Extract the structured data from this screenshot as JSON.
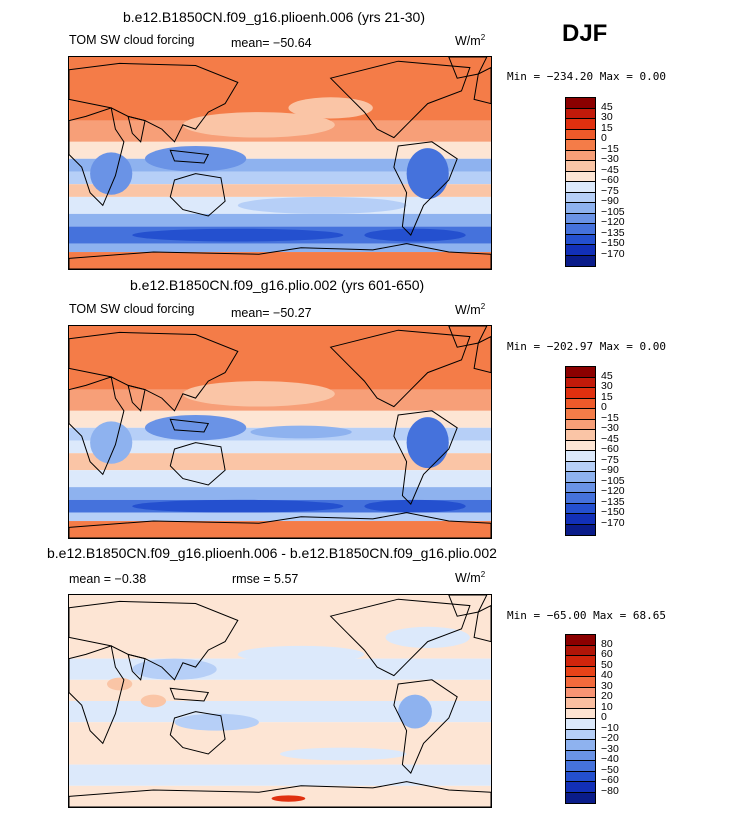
{
  "season": "DJF",
  "panels": [
    {
      "title": "b.e12.B1850CN.f09_g16.plioenh.006 (yrs 21-30)",
      "variable": "TOM SW cloud forcing",
      "mean_text": "mean= −50.64",
      "units_base": "W/m",
      "units_exp": "2",
      "minmax_text": "Min = −234.20 Max =    0.00"
    },
    {
      "title": "b.e12.B1850CN.f09_g16.plio.002 (yrs 601-650)",
      "variable": "TOM SW cloud forcing",
      "mean_text": "mean= −50.27",
      "units_base": "W/m",
      "units_exp": "2",
      "minmax_text": "Min = −202.97 Max =    0.00"
    },
    {
      "title": "b.e12.B1850CN.f09_g16.plioenh.006 - b.e12.B1850CN.f09_g16.plio.002",
      "mean_text": "mean =  −0.38",
      "rmse_text": "rmse =   5.57",
      "units_base": "W/m",
      "units_exp": "2",
      "minmax_text": "Min = −65.00 Max =  68.65"
    }
  ],
  "chart_data": [
    {
      "type": "heatmap",
      "title": "b.e12.B1850CN.f09_g16.plioenh.006 (yrs 21-30)",
      "variable": "TOM SW cloud forcing",
      "units": "W/m2",
      "mean": -50.64,
      "min": -234.2,
      "max": 0.0,
      "colorbar_levels": [
        "45",
        "30",
        "15",
        "0",
        "−15",
        "−30",
        "−45",
        "−60",
        "−75",
        "−90",
        "−105",
        "−120",
        "−135",
        "−150",
        "−170"
      ],
      "colorbar_colors": [
        "#8b0000",
        "#c21a0a",
        "#e0300f",
        "#ee5a2a",
        "#f47c48",
        "#f79f78",
        "#fac5a6",
        "#fde5d4",
        "#dce9fb",
        "#b6cff7",
        "#8eb2ef",
        "#6a93e6",
        "#4572dc",
        "#2450cf",
        "#1230b8",
        "#0a1c8a"
      ]
    },
    {
      "type": "heatmap",
      "title": "b.e12.B1850CN.f09_g16.plio.002 (yrs 601-650)",
      "variable": "TOM SW cloud forcing",
      "units": "W/m2",
      "mean": -50.27,
      "min": -202.97,
      "max": 0.0,
      "colorbar_levels": [
        "45",
        "30",
        "15",
        "0",
        "−15",
        "−30",
        "−45",
        "−60",
        "−75",
        "−90",
        "−105",
        "−120",
        "−135",
        "−150",
        "−170"
      ],
      "colorbar_colors": [
        "#8b0000",
        "#c21a0a",
        "#e0300f",
        "#ee5a2a",
        "#f47c48",
        "#f79f78",
        "#fac5a6",
        "#fde5d4",
        "#dce9fb",
        "#b6cff7",
        "#8eb2ef",
        "#6a93e6",
        "#4572dc",
        "#2450cf",
        "#1230b8",
        "#0a1c8a"
      ]
    },
    {
      "type": "heatmap",
      "title": "b.e12.B1850CN.f09_g16.plioenh.006 - b.e12.B1850CN.f09_g16.plio.002",
      "units": "W/m2",
      "mean": -0.38,
      "rmse": 5.57,
      "min": -65.0,
      "max": 68.65,
      "colorbar_levels": [
        "80",
        "60",
        "50",
        "40",
        "30",
        "20",
        "10",
        "0",
        "−10",
        "−20",
        "−30",
        "−40",
        "−50",
        "−60",
        "−80"
      ],
      "colorbar_colors": [
        "#8b0000",
        "#b01508",
        "#d0250c",
        "#e84318",
        "#f36a3c",
        "#f89474",
        "#fbbfa1",
        "#fde3d2",
        "#dce9fb",
        "#b6cff7",
        "#8eb2ef",
        "#6a93e6",
        "#4572dc",
        "#2450cf",
        "#1230b8",
        "#0a1c8a"
      ]
    }
  ]
}
